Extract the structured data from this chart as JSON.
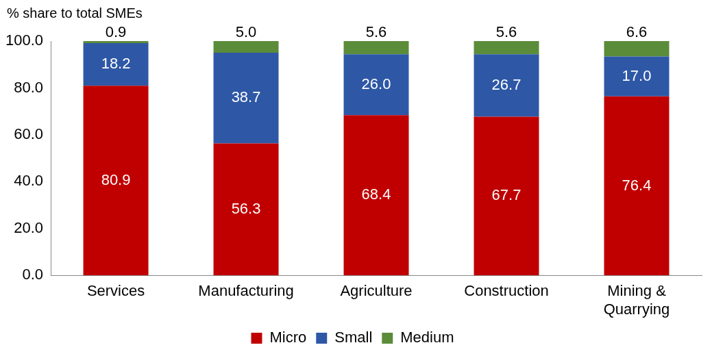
{
  "chart_data": {
    "type": "bar",
    "stacked": true,
    "ylabel": "% share to total SMEs",
    "categories": [
      "Services",
      "Manufacturing",
      "Agriculture",
      "Construction",
      "Mining & Quarrying"
    ],
    "series": [
      {
        "name": "Micro",
        "color": "#c00000",
        "values": [
          80.9,
          56.3,
          68.4,
          67.7,
          76.4
        ],
        "value_labels": [
          "80.9",
          "56.3",
          "68.4",
          "67.7",
          "76.4"
        ]
      },
      {
        "name": "Small",
        "color": "#2e58a6",
        "values": [
          18.2,
          38.7,
          26.0,
          26.7,
          17.0
        ],
        "value_labels": [
          "18.2",
          "38.7",
          "26.0",
          "26.7",
          "17.0"
        ]
      },
      {
        "name": "Medium",
        "color": "#5b8c3a",
        "values": [
          0.9,
          5.0,
          5.6,
          5.6,
          6.6
        ],
        "value_labels": [
          "0.9",
          "5.0",
          "5.6",
          "5.6",
          "6.6"
        ]
      }
    ],
    "ylim": [
      0,
      100
    ],
    "yticks": [
      {
        "value": 0,
        "label": "0.0"
      },
      {
        "value": 20,
        "label": "20.0"
      },
      {
        "value": 40,
        "label": "40.0"
      },
      {
        "value": 60,
        "label": "60.0"
      },
      {
        "value": 80,
        "label": "80.0"
      },
      {
        "value": 100,
        "label": "100.0"
      }
    ],
    "grid": false,
    "legend": "bottom"
  }
}
